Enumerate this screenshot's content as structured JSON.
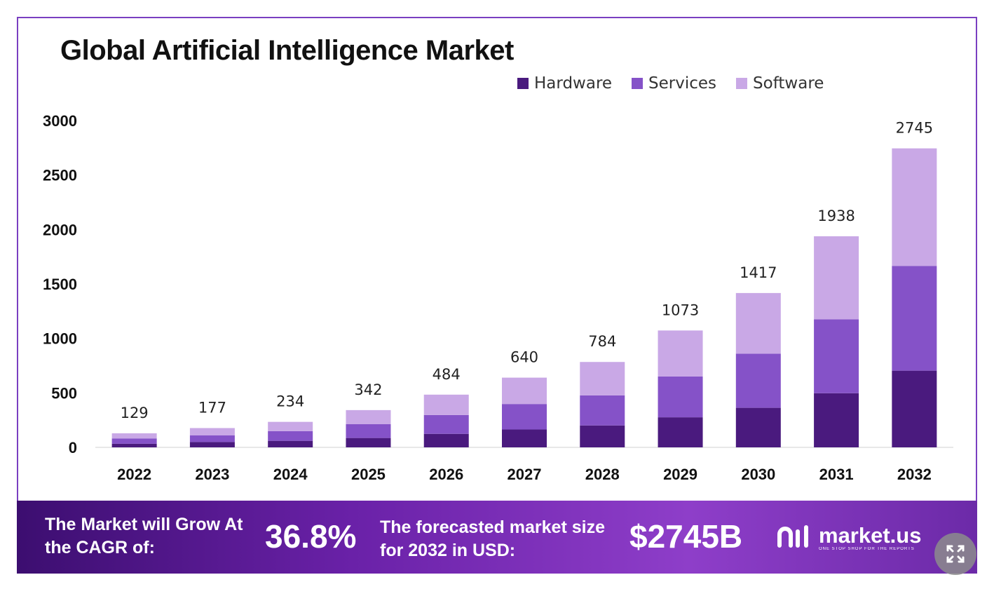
{
  "chart_data": {
    "type": "bar",
    "stacked": true,
    "title": "Global Artificial Intelligence Market",
    "categories": [
      "2022",
      "2023",
      "2024",
      "2025",
      "2026",
      "2027",
      "2028",
      "2029",
      "2030",
      "2031",
      "2032"
    ],
    "series": [
      {
        "name": "Hardware",
        "color": "#4a1a7e",
        "values": [
          33,
          49,
          60,
          86,
          124,
          164,
          201,
          276,
          363,
          497,
          704
        ]
      },
      {
        "name": "Services",
        "color": "#8552c8",
        "values": [
          49,
          62,
          89,
          128,
          173,
          234,
          276,
          375,
          497,
          679,
          962
        ]
      },
      {
        "name": "Software",
        "color": "#c9a8e6",
        "values": [
          47,
          66,
          85,
          128,
          187,
          242,
          307,
          422,
          557,
          762,
          1079
        ]
      }
    ],
    "totals": [
      "129",
      "177",
      "234",
      "342",
      "484",
      "640",
      "784",
      "1073",
      "1417",
      "1938",
      "2745"
    ],
    "ylim": [
      0,
      3000
    ],
    "yticks": [
      "0",
      "500",
      "1000",
      "1500",
      "2000",
      "2500",
      "3000"
    ],
    "xlabel": "",
    "ylabel": "",
    "legend_position": "top-right",
    "grid": false
  },
  "footer": {
    "cagr_label": "The Market will Grow At the CAGR of:",
    "cagr_value": "36.8%",
    "forecast_label": "The forecasted market size for 2032 in USD:",
    "forecast_value": "$2745B",
    "brand_name": "market.us",
    "brand_tagline": "ONE STOP SHOP FOR THE REPORTS"
  },
  "ui": {
    "expand_icon": "expand-icon"
  }
}
